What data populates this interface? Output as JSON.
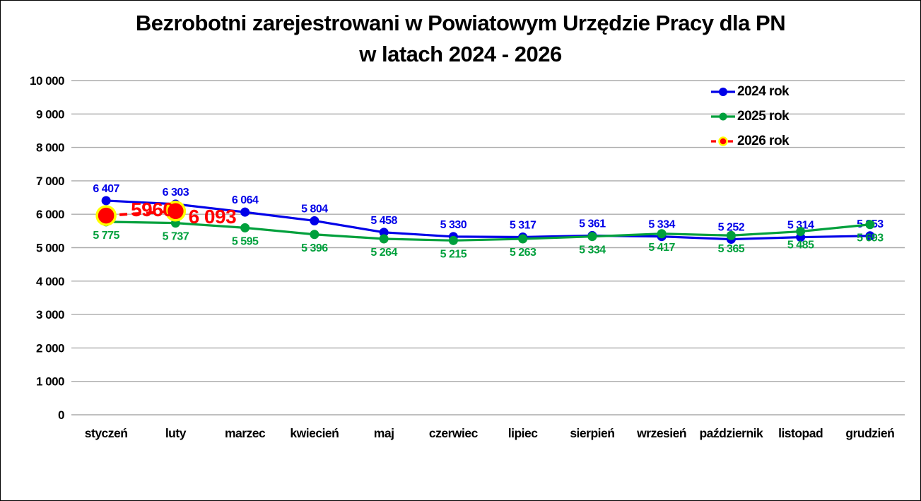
{
  "frame": {
    "background": "#FFFFFF",
    "border_color": "#000000"
  },
  "title": {
    "line1": "Bezrobotni zarejestrowani w Powiatowym Urzędzie Pracy dla PN",
    "line2": "w latach 2024 - 2026"
  },
  "legend": {
    "position": "top-right",
    "items": [
      {
        "label": "2024 rok",
        "color": "#0000E8",
        "line_style": "solid"
      },
      {
        "label": "2025 rok",
        "color": "#00A03C",
        "line_style": "solid"
      },
      {
        "label": "2026 rok",
        "color": "#FF0000",
        "line_style": "dashed",
        "marker_outline": "#FFFF00"
      }
    ]
  },
  "chart_data": {
    "type": "line",
    "title": "Bezrobotni zarejestrowani w Powiatowym Urzędzie Pracy dla PN w latach 2024 - 2026",
    "categories": [
      "styczeń",
      "luty",
      "marzec",
      "kwiecień",
      "maj",
      "czerwiec",
      "lipiec",
      "sierpień",
      "wrzesień",
      "październik",
      "listopad",
      "grudzień"
    ],
    "series": [
      {
        "name": "2024 rok",
        "color": "#0000E8",
        "line_style": "solid",
        "label_position": "above",
        "values": [
          6407,
          6303,
          6064,
          5804,
          5458,
          5330,
          5317,
          5361,
          5334,
          5252,
          5314,
          5353
        ],
        "labels": [
          "6 407",
          "6 303",
          "6 064",
          "5 804",
          "5 458",
          "5 330",
          "5 317",
          "5 361",
          "5 334",
          "5 252",
          "5 314",
          "5 353"
        ]
      },
      {
        "name": "2025 rok",
        "color": "#00A03C",
        "line_style": "solid",
        "label_position": "below",
        "values": [
          5775,
          5737,
          5595,
          5396,
          5264,
          5215,
          5263,
          5334,
          5417,
          5365,
          5485,
          5693
        ],
        "labels": [
          "5 775",
          "5 737",
          "5 595",
          "5 396",
          "5 264",
          "5 215",
          "5 263",
          "5 334",
          "5 417",
          "5 365",
          "5 485",
          "5 693"
        ]
      },
      {
        "name": "2026 rok",
        "color": "#FF0000",
        "marker_outline": "#FFFF00",
        "line_style": "dashed",
        "label_position": "beside",
        "values": [
          5960,
          6093,
          null,
          null,
          null,
          null,
          null,
          null,
          null,
          null,
          null,
          null
        ],
        "labels": [
          "5960",
          "6 093"
        ]
      }
    ],
    "ylim": [
      0,
      10000
    ],
    "ytick_step": 1000,
    "ytick_labels": [
      "0",
      "1 000",
      "2 000",
      "3 000",
      "4 000",
      "5 000",
      "6 000",
      "7 000",
      "8 000",
      "9 000",
      "10 000"
    ],
    "grid": "horizontal",
    "gridline_color": "#ACACAC",
    "legend_position": "top-right"
  }
}
